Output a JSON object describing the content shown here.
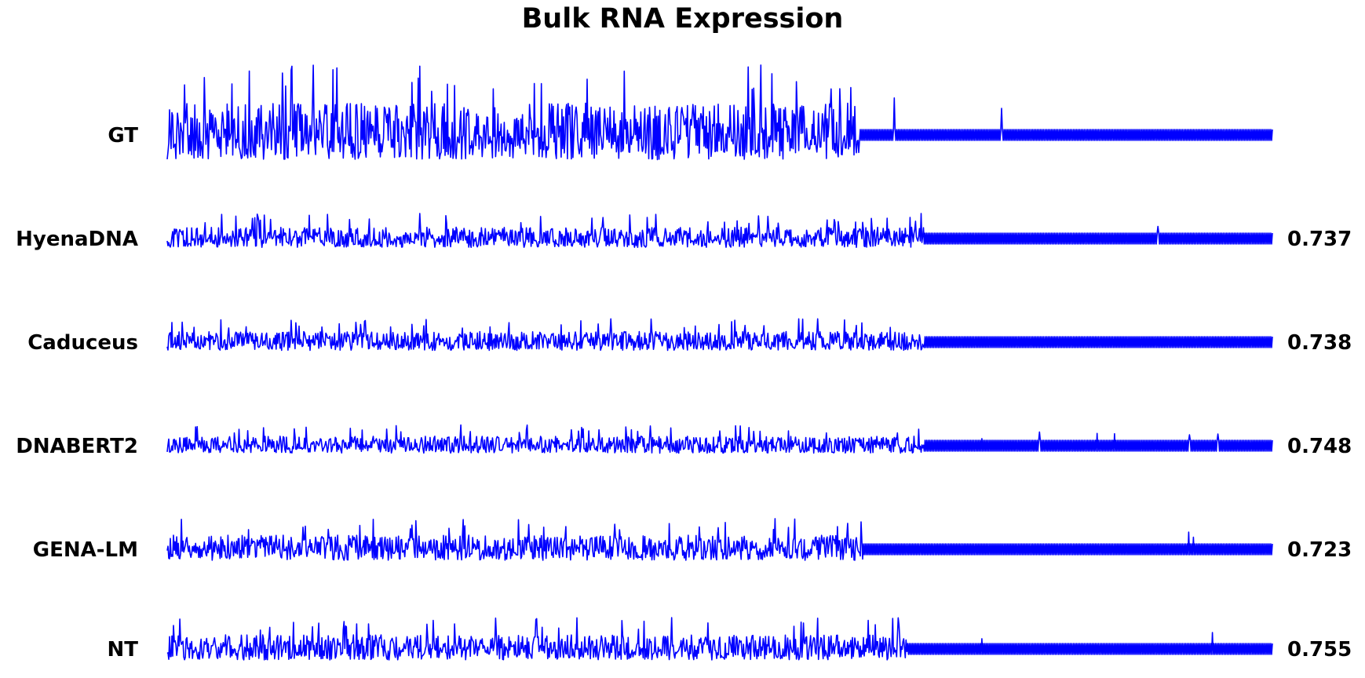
{
  "chart_data": {
    "type": "line",
    "title": "Bulk RNA Expression",
    "xlabel": "",
    "ylabel": "",
    "axes_visible": false,
    "grid": false,
    "legend": "none",
    "line_color": "#0000ff",
    "tracks": [
      {
        "name": "GT",
        "score": ""
      },
      {
        "name": "HyenaDNA",
        "score": "0.737"
      },
      {
        "name": "Caduceus",
        "score": "0.738"
      },
      {
        "name": "DNABERT2",
        "score": "0.748"
      },
      {
        "name": "GENA-LM",
        "score": "0.723"
      },
      {
        "name": "NT",
        "score": "0.755"
      }
    ]
  }
}
